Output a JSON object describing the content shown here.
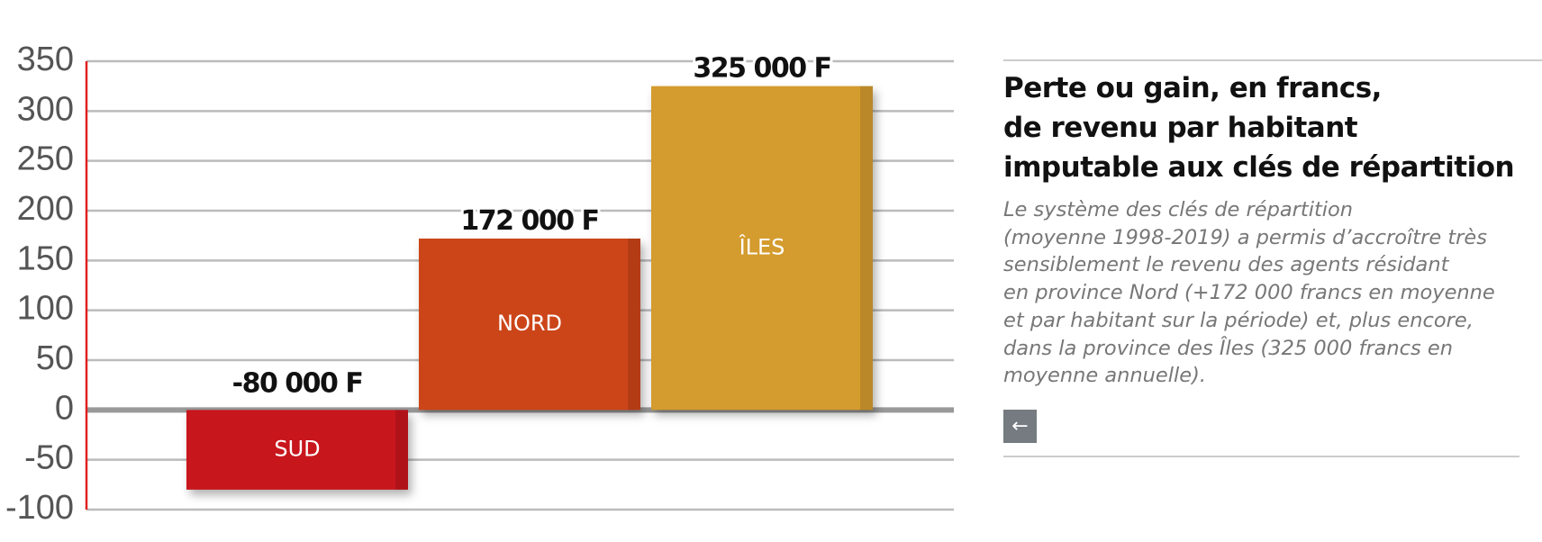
{
  "chart_data": {
    "type": "bar",
    "categories": [
      "SUD",
      "NORD",
      "ÎLES"
    ],
    "values": [
      -80,
      172,
      325
    ],
    "value_labels": [
      "-80 000 F",
      "172 000 F",
      "325 000 F"
    ],
    "colors": [
      "#c8161d",
      "#cc4519",
      "#d49b2e"
    ],
    "ylim": [
      -100,
      350
    ],
    "yticks": [
      -100,
      -50,
      0,
      50,
      100,
      150,
      200,
      250,
      300,
      350
    ],
    "grid": true
  },
  "panel": {
    "title_lines": [
      "Perte ou gain, en francs,",
      "de revenu par habitant",
      "imputable aux clés de répartition"
    ],
    "description_lines": [
      "Le système des clés de répartition",
      "(moyenne 1998-2019) a permis d’accroître très",
      "sensiblement le revenu des agents résidant",
      "en province Nord (+172 000 francs en moyenne",
      "et par habitant sur la période) et, plus encore,",
      "dans la province des Îles (325 000 francs en",
      "moyenne annuelle)."
    ]
  }
}
